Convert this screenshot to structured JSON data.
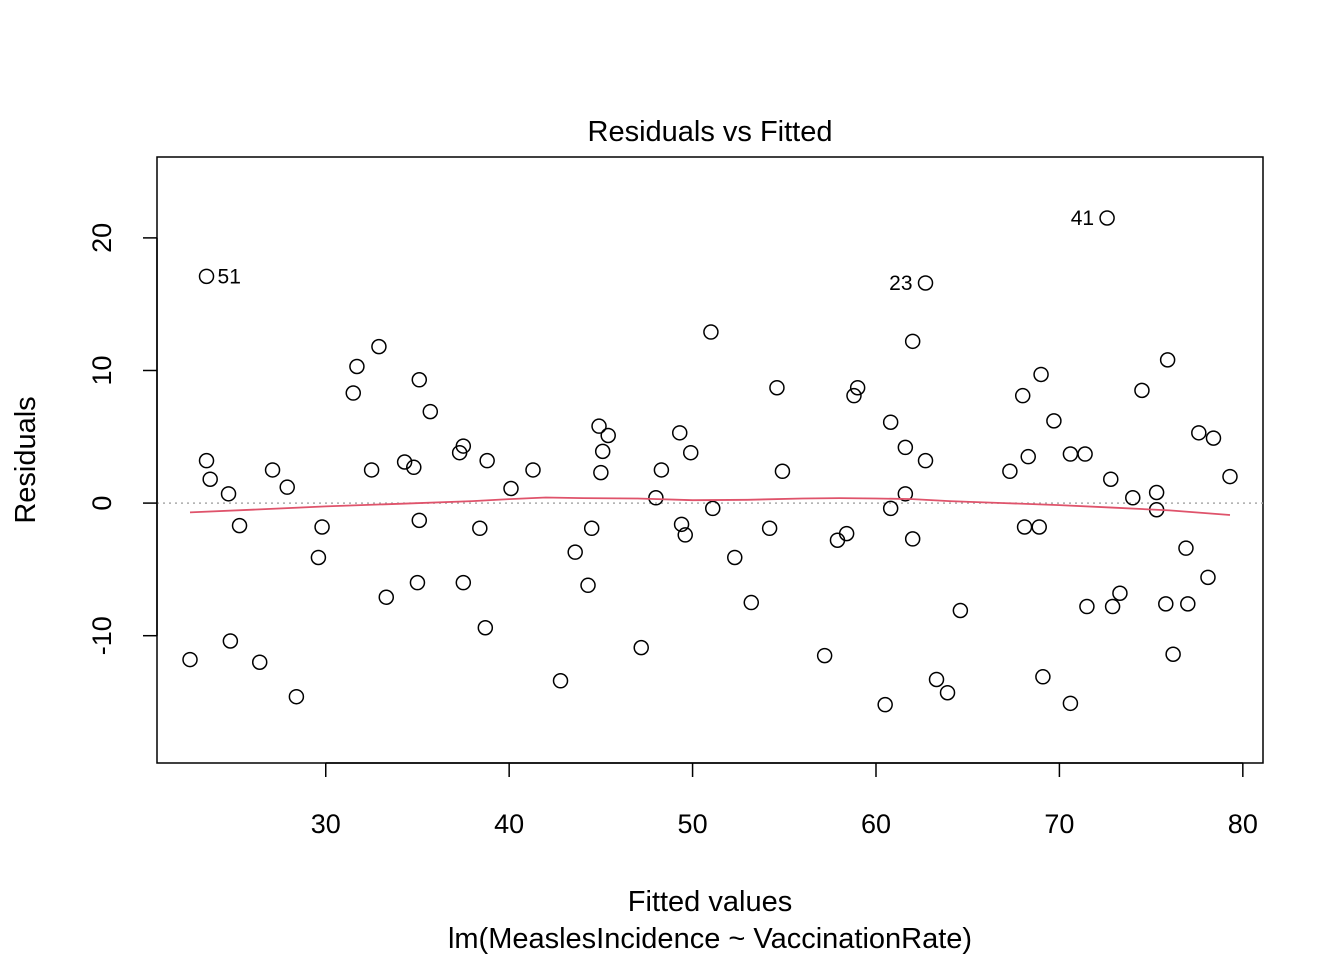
{
  "chart_data": {
    "type": "scatter",
    "title": "Residuals vs Fitted",
    "xlabel": "Fitted values",
    "subtitle": "lm(MeaslesIncidence ~ VaccinationRate)",
    "ylabel": "Residuals",
    "xlim": [
      20.8,
      81.1
    ],
    "ylim": [
      -19.6,
      26.1
    ],
    "x_ticks": [
      30,
      40,
      50,
      60,
      70,
      80
    ],
    "y_ticks": [
      -10,
      0,
      10,
      20
    ],
    "x_tick_labels": [
      "30",
      "40",
      "50",
      "60",
      "70",
      "80"
    ],
    "y_tick_labels": [
      "-10",
      "0",
      "10",
      "20"
    ],
    "reference_line": {
      "y": 0,
      "color": "#a9a9a9",
      "style": "dotted"
    },
    "smooth_color": "#df536b",
    "point_color": "#000000",
    "points": [
      {
        "x": 22.6,
        "y": -11.8
      },
      {
        "x": 23.5,
        "y": 17.1,
        "label": "51"
      },
      {
        "x": 23.5,
        "y": 3.2
      },
      {
        "x": 23.7,
        "y": 1.8
      },
      {
        "x": 24.7,
        "y": 0.7
      },
      {
        "x": 24.8,
        "y": -10.4
      },
      {
        "x": 25.3,
        "y": -1.7
      },
      {
        "x": 26.4,
        "y": -12.0
      },
      {
        "x": 27.1,
        "y": 2.5
      },
      {
        "x": 27.9,
        "y": 1.2
      },
      {
        "x": 28.4,
        "y": -14.6
      },
      {
        "x": 29.6,
        "y": -4.1
      },
      {
        "x": 29.8,
        "y": -1.8
      },
      {
        "x": 31.5,
        "y": 8.3
      },
      {
        "x": 31.7,
        "y": 10.3
      },
      {
        "x": 32.5,
        "y": 2.5
      },
      {
        "x": 32.9,
        "y": 11.8
      },
      {
        "x": 33.3,
        "y": -7.1
      },
      {
        "x": 34.3,
        "y": 3.1
      },
      {
        "x": 34.8,
        "y": 2.7
      },
      {
        "x": 35.0,
        "y": -6.0
      },
      {
        "x": 35.1,
        "y": -1.3
      },
      {
        "x": 35.1,
        "y": 9.3
      },
      {
        "x": 35.7,
        "y": 6.9
      },
      {
        "x": 37.3,
        "y": 3.8
      },
      {
        "x": 37.5,
        "y": 4.3
      },
      {
        "x": 37.5,
        "y": -6.0
      },
      {
        "x": 38.4,
        "y": -1.9
      },
      {
        "x": 38.7,
        "y": -9.4
      },
      {
        "x": 38.8,
        "y": 3.2
      },
      {
        "x": 40.1,
        "y": 1.1
      },
      {
        "x": 41.3,
        "y": 2.5
      },
      {
        "x": 42.8,
        "y": -13.4
      },
      {
        "x": 43.6,
        "y": -3.7
      },
      {
        "x": 44.3,
        "y": -6.2
      },
      {
        "x": 44.5,
        "y": -1.9
      },
      {
        "x": 44.9,
        "y": 5.8
      },
      {
        "x": 45.0,
        "y": 2.3
      },
      {
        "x": 45.1,
        "y": 3.9
      },
      {
        "x": 45.4,
        "y": 5.1
      },
      {
        "x": 47.2,
        "y": -10.9
      },
      {
        "x": 48.0,
        "y": 0.4
      },
      {
        "x": 48.3,
        "y": 2.5
      },
      {
        "x": 49.3,
        "y": 5.3
      },
      {
        "x": 49.4,
        "y": -1.6
      },
      {
        "x": 49.6,
        "y": -2.4
      },
      {
        "x": 49.9,
        "y": 3.8
      },
      {
        "x": 51.0,
        "y": 12.9
      },
      {
        "x": 51.1,
        "y": -0.4
      },
      {
        "x": 52.3,
        "y": -4.1
      },
      {
        "x": 53.2,
        "y": -7.5
      },
      {
        "x": 54.2,
        "y": -1.9
      },
      {
        "x": 54.6,
        "y": 8.7
      },
      {
        "x": 54.9,
        "y": 2.4
      },
      {
        "x": 57.2,
        "y": -11.5
      },
      {
        "x": 57.9,
        "y": -2.8
      },
      {
        "x": 58.4,
        "y": -2.3
      },
      {
        "x": 58.8,
        "y": 8.1
      },
      {
        "x": 59.0,
        "y": 8.7
      },
      {
        "x": 60.5,
        "y": -15.2
      },
      {
        "x": 60.8,
        "y": -0.4
      },
      {
        "x": 60.8,
        "y": 6.1
      },
      {
        "x": 61.6,
        "y": 4.2
      },
      {
        "x": 61.6,
        "y": 0.7
      },
      {
        "x": 62.0,
        "y": 12.2
      },
      {
        "x": 62.0,
        "y": -2.7
      },
      {
        "x": 62.7,
        "y": 16.6,
        "label": "23"
      },
      {
        "x": 62.7,
        "y": 3.2
      },
      {
        "x": 63.3,
        "y": -13.3
      },
      {
        "x": 63.9,
        "y": -14.3
      },
      {
        "x": 64.6,
        "y": -8.1
      },
      {
        "x": 67.3,
        "y": 2.4
      },
      {
        "x": 68.0,
        "y": 8.1
      },
      {
        "x": 68.1,
        "y": -1.8
      },
      {
        "x": 68.3,
        "y": 3.5
      },
      {
        "x": 68.9,
        "y": -1.8
      },
      {
        "x": 69.0,
        "y": 9.7
      },
      {
        "x": 69.1,
        "y": -13.1
      },
      {
        "x": 69.7,
        "y": 6.2
      },
      {
        "x": 70.6,
        "y": -15.1
      },
      {
        "x": 70.6,
        "y": 3.7
      },
      {
        "x": 71.4,
        "y": 3.7
      },
      {
        "x": 71.5,
        "y": -7.8
      },
      {
        "x": 72.6,
        "y": 21.5,
        "label": "41"
      },
      {
        "x": 72.8,
        "y": 1.8
      },
      {
        "x": 72.9,
        "y": -7.8
      },
      {
        "x": 73.3,
        "y": -6.8
      },
      {
        "x": 74.0,
        "y": 0.4
      },
      {
        "x": 74.5,
        "y": 8.5
      },
      {
        "x": 75.3,
        "y": 0.8
      },
      {
        "x": 75.3,
        "y": -0.5
      },
      {
        "x": 75.8,
        "y": -7.6
      },
      {
        "x": 75.9,
        "y": 10.8
      },
      {
        "x": 76.2,
        "y": -11.4
      },
      {
        "x": 76.9,
        "y": -3.4
      },
      {
        "x": 77.0,
        "y": -7.6
      },
      {
        "x": 77.6,
        "y": 5.3
      },
      {
        "x": 78.1,
        "y": -5.6
      },
      {
        "x": 78.4,
        "y": 4.9
      },
      {
        "x": 79.3,
        "y": 2.0
      }
    ],
    "smooth_line": [
      {
        "x": 22.6,
        "y": -0.7
      },
      {
        "x": 26.0,
        "y": -0.5
      },
      {
        "x": 30.0,
        "y": -0.25
      },
      {
        "x": 34.0,
        "y": -0.05
      },
      {
        "x": 38.0,
        "y": 0.15
      },
      {
        "x": 40.0,
        "y": 0.3
      },
      {
        "x": 42.0,
        "y": 0.42
      },
      {
        "x": 44.0,
        "y": 0.38
      },
      {
        "x": 47.0,
        "y": 0.35
      },
      {
        "x": 50.0,
        "y": 0.22
      },
      {
        "x": 53.0,
        "y": 0.25
      },
      {
        "x": 56.0,
        "y": 0.35
      },
      {
        "x": 58.0,
        "y": 0.38
      },
      {
        "x": 60.0,
        "y": 0.35
      },
      {
        "x": 62.0,
        "y": 0.3
      },
      {
        "x": 64.0,
        "y": 0.15
      },
      {
        "x": 67.0,
        "y": 0.0
      },
      {
        "x": 70.0,
        "y": -0.15
      },
      {
        "x": 73.0,
        "y": -0.35
      },
      {
        "x": 76.0,
        "y": -0.55
      },
      {
        "x": 79.3,
        "y": -0.9
      }
    ]
  }
}
